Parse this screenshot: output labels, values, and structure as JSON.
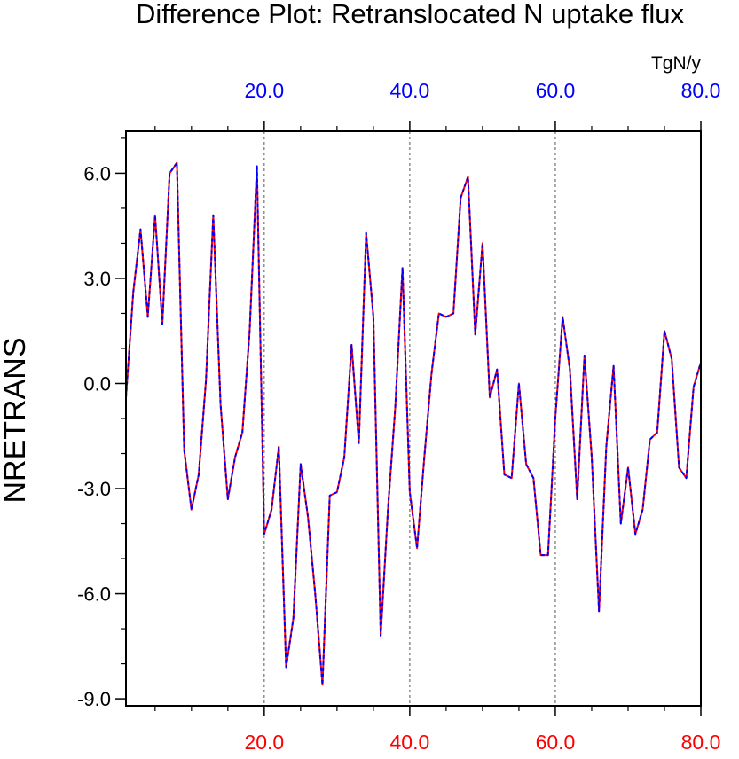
{
  "chart_data": {
    "type": "line",
    "title": "Difference Plot: Retranslocated N uptake flux",
    "units": "TgN/y",
    "ylabel": "NRETRANS",
    "xlim": [
      1,
      80
    ],
    "ylim": [
      -9.2,
      7.2
    ],
    "xticks": [
      20,
      40,
      60,
      80
    ],
    "xtick_labels": [
      "20.0",
      "40.0",
      "60.0",
      "80.0"
    ],
    "yticks": [
      6,
      3,
      0,
      -3,
      -6,
      -9
    ],
    "ytick_labels": [
      "6.0",
      "3.0",
      "0.0",
      "-3.0",
      "-6.0",
      "-9.0"
    ],
    "grid": "vertical dotted lines at 20, 40, 60",
    "series": [
      {
        "color": "#ff0000",
        "style": "solid",
        "x": [
          1,
          2,
          3,
          4,
          5,
          6,
          7,
          8,
          9,
          10,
          11,
          12,
          13,
          14,
          15,
          16,
          17,
          18,
          19,
          20,
          21,
          22,
          23,
          24,
          25,
          26,
          27,
          28,
          29,
          30,
          31,
          32,
          33,
          34,
          35,
          36,
          37,
          38,
          39,
          40,
          41,
          42,
          43,
          44,
          45,
          46,
          47,
          48,
          49,
          50,
          51,
          52,
          53,
          54,
          55,
          56,
          57,
          58,
          59,
          60,
          61,
          62,
          63,
          64,
          65,
          66,
          67,
          68,
          69,
          70,
          71,
          72,
          73,
          74,
          75,
          76,
          77,
          78,
          79,
          80
        ],
        "y": [
          -0.4,
          2.6,
          4.4,
          1.9,
          4.8,
          1.7,
          6.0,
          6.3,
          -1.9,
          -3.6,
          -2.6,
          0.1,
          4.8,
          -0.6,
          -3.3,
          -2.1,
          -1.4,
          1.5,
          6.2,
          -4.3,
          -3.6,
          -1.8,
          -8.1,
          -6.7,
          -2.3,
          -3.8,
          -6.0,
          -8.6,
          -3.2,
          -3.1,
          -2.1,
          1.1,
          -1.7,
          4.3,
          1.9,
          -7.2,
          -3.6,
          -0.7,
          3.3,
          -3.1,
          -4.7,
          -2.1,
          0.3,
          2.0,
          1.9,
          2.0,
          5.3,
          5.9,
          1.4,
          4.0,
          -0.4,
          0.4,
          -2.6,
          -2.7,
          0.0,
          -2.3,
          -2.7,
          -4.9,
          -4.9,
          -1.0,
          1.9,
          0.4,
          -3.3,
          0.8,
          -2.1,
          -6.5,
          -1.8,
          0.5,
          -4.0,
          -2.4,
          -4.3,
          -3.6,
          -1.6,
          -1.4,
          1.5,
          0.7,
          -2.4,
          -2.7,
          -0.1,
          0.6
        ]
      },
      {
        "color": "#0000ff",
        "style": "dashed",
        "x": [
          1,
          2,
          3,
          4,
          5,
          6,
          7,
          8,
          9,
          10,
          11,
          12,
          13,
          14,
          15,
          16,
          17,
          18,
          19,
          20,
          21,
          22,
          23,
          24,
          25,
          26,
          27,
          28,
          29,
          30,
          31,
          32,
          33,
          34,
          35,
          36,
          37,
          38,
          39,
          40,
          41,
          42,
          43,
          44,
          45,
          46,
          47,
          48,
          49,
          50,
          51,
          52,
          53,
          54,
          55,
          56,
          57,
          58,
          59,
          60,
          61,
          62,
          63,
          64,
          65,
          66,
          67,
          68,
          69,
          70,
          71,
          72,
          73,
          74,
          75,
          76,
          77,
          78,
          79,
          80
        ],
        "y": [
          -0.4,
          2.6,
          4.4,
          1.9,
          4.8,
          1.7,
          6.0,
          6.3,
          -1.9,
          -3.6,
          -2.6,
          0.1,
          4.8,
          -0.6,
          -3.3,
          -2.1,
          -1.4,
          1.5,
          6.2,
          -4.3,
          -3.6,
          -1.8,
          -8.1,
          -6.7,
          -2.3,
          -3.8,
          -6.0,
          -8.6,
          -3.2,
          -3.1,
          -2.1,
          1.1,
          -1.7,
          4.3,
          1.9,
          -7.2,
          -3.6,
          -0.7,
          3.3,
          -3.1,
          -4.7,
          -2.1,
          0.3,
          2.0,
          1.9,
          2.0,
          5.3,
          5.9,
          1.4,
          4.0,
          -0.4,
          0.4,
          -2.6,
          -2.7,
          0.0,
          -2.3,
          -2.7,
          -4.9,
          -4.9,
          -1.0,
          1.9,
          0.4,
          -3.3,
          0.8,
          -2.1,
          -6.5,
          -1.8,
          0.5,
          -4.0,
          -2.4,
          -4.3,
          -3.6,
          -1.6,
          -1.4,
          1.5,
          0.7,
          -2.4,
          -2.7,
          -0.1,
          0.6
        ]
      }
    ]
  }
}
